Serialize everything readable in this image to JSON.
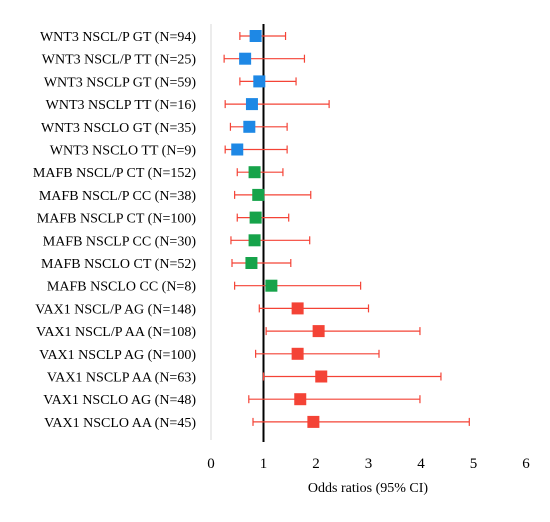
{
  "chart_data": {
    "type": "scatter",
    "subtype": "forest-plot",
    "title": "",
    "xlabel": "Odds ratios (95% CI)",
    "ylabel": "",
    "xlim": [
      0,
      6
    ],
    "xticks": [
      0,
      1,
      2,
      3,
      4,
      5,
      6
    ],
    "reference_line": 1,
    "grid": false,
    "legend": "none",
    "colors": {
      "WNT3": "#1e88e5",
      "MAFB": "#16a34a",
      "VAX1": "#f44336",
      "errorbar": "#f44336",
      "axis": "#000000"
    },
    "rows": [
      {
        "label": "WNT3 NSCL/P GT (N=94)",
        "group": "WNT3",
        "or": 0.85,
        "lo": 0.55,
        "hi": 1.42
      },
      {
        "label": "WNT3 NSCL/P TT (N=25)",
        "group": "WNT3",
        "or": 0.65,
        "lo": 0.25,
        "hi": 1.78
      },
      {
        "label": "WNT3 NSCLP GT (N=59)",
        "group": "WNT3",
        "or": 0.92,
        "lo": 0.55,
        "hi": 1.62
      },
      {
        "label": "WNT3 NSCLP TT (N=16)",
        "group": "WNT3",
        "or": 0.78,
        "lo": 0.27,
        "hi": 2.25
      },
      {
        "label": "WNT3 NSCLO GT (N=35)",
        "group": "WNT3",
        "or": 0.73,
        "lo": 0.37,
        "hi": 1.45
      },
      {
        "label": "WNT3 NSCLO TT (N=9)",
        "group": "WNT3",
        "or": 0.5,
        "lo": 0.27,
        "hi": 1.45
      },
      {
        "label": "MAFB NSCL/P CT (N=152)",
        "group": "MAFB",
        "or": 0.83,
        "lo": 0.5,
        "hi": 1.37
      },
      {
        "label": "MAFB NSCL/P CC (N=38)",
        "group": "MAFB",
        "or": 0.9,
        "lo": 0.45,
        "hi": 1.9
      },
      {
        "label": "MAFB NSCLP CT (N=100)",
        "group": "MAFB",
        "or": 0.85,
        "lo": 0.5,
        "hi": 1.48
      },
      {
        "label": "MAFB NSCLP CC (N=30)",
        "group": "MAFB",
        "or": 0.83,
        "lo": 0.38,
        "hi": 1.88
      },
      {
        "label": "MAFB NSCLO CT (N=52)",
        "group": "MAFB",
        "or": 0.77,
        "lo": 0.4,
        "hi": 1.52
      },
      {
        "label": "MAFB NSCLO CC (N=8)",
        "group": "MAFB",
        "or": 1.15,
        "lo": 0.45,
        "hi": 2.85
      },
      {
        "label": "VAX1 NSCL/P AG (N=148)",
        "group": "VAX1",
        "or": 1.65,
        "lo": 0.92,
        "hi": 3.0
      },
      {
        "label": "VAX1 NSCL/P AA (N=108)",
        "group": "VAX1",
        "or": 2.05,
        "lo": 1.05,
        "hi": 3.98
      },
      {
        "label": "VAX1 NSCLP AG (N=100)",
        "group": "VAX1",
        "or": 1.65,
        "lo": 0.85,
        "hi": 3.2
      },
      {
        "label": "VAX1 NSCLP AA (N=63)",
        "group": "VAX1",
        "or": 2.1,
        "lo": 1.0,
        "hi": 4.38
      },
      {
        "label": "VAX1 NSCLO AG (N=48)",
        "group": "VAX1",
        "or": 1.7,
        "lo": 0.72,
        "hi": 3.98
      },
      {
        "label": "VAX1 NSCLO AA (N=45)",
        "group": "VAX1",
        "or": 1.95,
        "lo": 0.8,
        "hi": 4.92
      }
    ]
  }
}
